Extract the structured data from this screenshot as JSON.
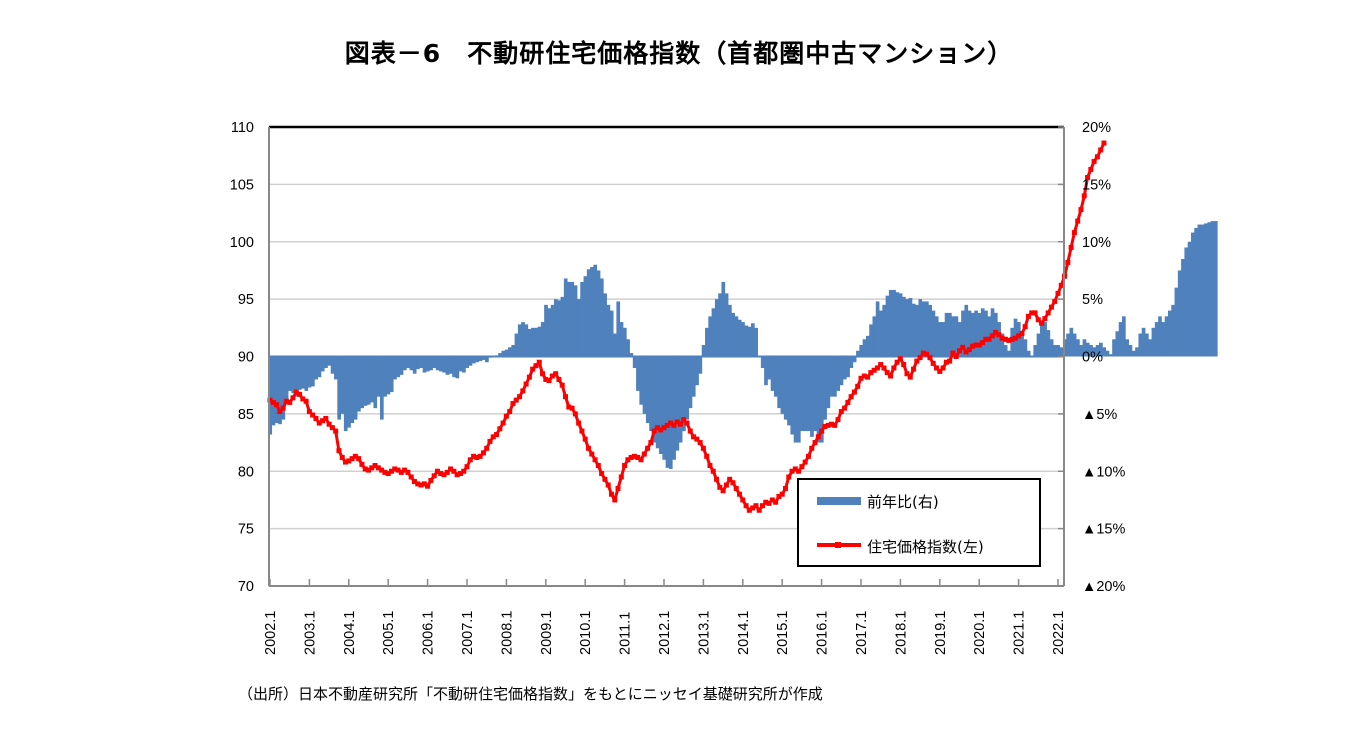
{
  "title": "図表－6　不動研住宅価格指数（首都圏中古マンション）",
  "source": "（出所）日本不動産研究所「不動研住宅価格指数」をもとにニッセイ基礎研究所が作成",
  "chart_data": {
    "type": "bar+line",
    "title": "図表－6　不動研住宅価格指数（首都圏中古マンション）",
    "xlabel": "",
    "ylabel_left": "",
    "ylabel_right": "",
    "x_start": "2002.1",
    "x_end": "2022.1",
    "frequency": "monthly",
    "x_tick_labels": [
      "2002.1",
      "2003.1",
      "2004.1",
      "2005.1",
      "2006.1",
      "2007.1",
      "2008.1",
      "2009.1",
      "2010.1",
      "2011.1",
      "2012.1",
      "2013.1",
      "2014.1",
      "2015.1",
      "2016.1",
      "2017.1",
      "2018.1",
      "2019.1",
      "2020.1",
      "2021.1",
      "2022.1"
    ],
    "y_left": {
      "range": [
        70,
        110
      ],
      "ticks": [
        "70",
        "75",
        "80",
        "85",
        "90",
        "95",
        "100",
        "105",
        "110"
      ]
    },
    "y_right": {
      "range": [
        -20,
        20
      ],
      "ticks": [
        "▲20%",
        "▲15%",
        "▲10%",
        "▲5%",
        "0%",
        "5%",
        "10%",
        "15%",
        "20%"
      ]
    },
    "grid": true,
    "legend": {
      "position": "bottom-right",
      "entries": [
        {
          "name": "前年比(右)",
          "type": "bar",
          "color": "#4f81bd"
        },
        {
          "name": "住宅価格指数(左)",
          "type": "line",
          "color": "#ff0000"
        }
      ]
    },
    "series": [
      {
        "name": "前年比(右)",
        "axis": "right",
        "unit": "%",
        "color": "#4f81bd",
        "values": [
          -6.8,
          -6.0,
          -5.8,
          -5.9,
          -5.5,
          -4.0,
          -3.0,
          -3.2,
          -3.5,
          -2.9,
          -2.8,
          -3.0,
          -2.7,
          -2.6,
          -2.0,
          -1.8,
          -1.3,
          -1.0,
          -0.8,
          -1.5,
          -2.0,
          -5.5,
          -5.0,
          -6.5,
          -6.2,
          -5.8,
          -5.5,
          -4.8,
          -4.5,
          -4.3,
          -4.2,
          -4.0,
          -4.5,
          -3.5,
          -5.5,
          -3.5,
          -3.3,
          -3.1,
          -2.0,
          -1.8,
          -1.6,
          -1.2,
          -1.0,
          -1.2,
          -1.5,
          -1.1,
          -1.0,
          -1.4,
          -1.3,
          -1.2,
          -1.0,
          -1.2,
          -1.3,
          -1.4,
          -1.6,
          -1.5,
          -1.8,
          -1.9,
          -1.3,
          -1.4,
          -1.0,
          -0.8,
          -0.6,
          -0.5,
          -0.4,
          -0.3,
          -0.5,
          -0.1,
          0.0,
          0.1,
          0.3,
          0.5,
          0.6,
          0.8,
          1.0,
          2.0,
          2.8,
          3.0,
          2.8,
          2.4,
          2.5,
          2.5,
          2.6,
          3.0,
          4.5,
          4.2,
          4.5,
          5.0,
          4.9,
          5.2,
          6.8,
          6.5,
          6.5,
          6.2,
          5.0,
          6.5,
          7.0,
          7.6,
          7.8,
          8.0,
          7.5,
          6.8,
          5.5,
          4.5,
          4.0,
          2.0,
          4.8,
          3.0,
          2.5,
          1.5,
          0.3,
          -1.0,
          -3.0,
          -4.2,
          -5.0,
          -5.8,
          -6.5,
          -7.5,
          -8.0,
          -8.5,
          -9.0,
          -9.7,
          -9.8,
          -9.0,
          -8.2,
          -7.5,
          -6.5,
          -5.5,
          -4.5,
          -3.5,
          -2.5,
          -1.5,
          1.0,
          2.5,
          3.5,
          4.2,
          5.0,
          5.5,
          6.5,
          5.5,
          4.5,
          3.8,
          3.5,
          3.2,
          3.0,
          2.7,
          2.6,
          2.9,
          2.5,
          0.0,
          -1.0,
          -2.5,
          -2.0,
          -3.0,
          -3.5,
          -4.5,
          -5.0,
          -5.5,
          -6.0,
          -6.8,
          -7.5,
          -7.5,
          -6.5,
          -6.5,
          -6.5,
          -7.0,
          -6.5,
          -7.5,
          -7.5,
          -5.5,
          -4.5,
          -3.5,
          -3.5,
          -3.0,
          -2.5,
          -2.0,
          -1.8,
          -1.0,
          -0.5,
          0.5,
          1.0,
          1.5,
          1.8,
          2.8,
          3.5,
          4.8,
          4.0,
          4.5,
          5.3,
          5.8,
          5.8,
          5.6,
          5.5,
          5.2,
          5.0,
          5.1,
          4.6,
          4.5,
          5.0,
          4.8,
          4.8,
          4.5,
          4.0,
          3.5,
          3.0,
          3.0,
          3.8,
          3.8,
          3.5,
          3.5,
          3.0,
          4.0,
          4.5,
          4.0,
          3.8,
          4.0,
          3.8,
          4.2,
          4.0,
          3.5,
          4.2,
          3.8,
          3.0,
          2.0,
          1.0,
          0.5,
          2.5,
          3.3,
          3.0,
          2.2,
          1.5,
          0.5,
          0.0,
          1.0,
          2.0,
          3.0,
          3.0,
          2.3,
          1.5,
          1.0,
          1.0,
          0.8,
          1.5,
          2.0,
          2.5,
          2.0,
          1.5,
          1.0,
          1.5,
          1.2,
          1.0,
          0.8,
          1.0,
          1.2,
          0.8,
          0.5,
          0.2,
          1.5,
          2.2,
          3.0,
          3.5,
          1.5,
          1.0,
          0.5,
          0.8,
          2.0,
          2.5,
          2.0,
          1.5,
          2.5,
          3.0,
          3.5,
          3.0,
          3.5,
          4.0,
          4.5,
          6.0,
          7.5,
          8.5,
          9.5,
          10.0,
          10.8,
          11.2,
          11.5,
          11.5,
          11.6,
          11.7,
          11.8,
          11.8
        ]
      },
      {
        "name": "住宅価格指数(左)",
        "axis": "left",
        "unit": "index",
        "color": "#ff0000",
        "values": [
          86.2,
          86.0,
          85.8,
          85.2,
          85.5,
          86.1,
          86.0,
          86.4,
          86.9,
          86.7,
          86.3,
          86.1,
          85.2,
          84.9,
          84.6,
          84.2,
          84.4,
          84.6,
          84.1,
          83.8,
          83.5,
          81.8,
          81.2,
          80.8,
          80.9,
          81.1,
          81.3,
          81.1,
          80.6,
          80.2,
          80.1,
          80.3,
          80.5,
          80.3,
          80.1,
          79.9,
          79.8,
          80.0,
          80.2,
          80.1,
          79.9,
          80.1,
          79.9,
          79.5,
          79.1,
          78.9,
          78.8,
          78.9,
          78.7,
          79.2,
          79.6,
          80.0,
          79.8,
          79.7,
          79.9,
          80.2,
          80.0,
          79.7,
          79.8,
          80.0,
          80.4,
          81.0,
          81.3,
          81.2,
          81.3,
          81.6,
          82.0,
          82.6,
          83.0,
          83.2,
          83.7,
          84.2,
          84.8,
          85.2,
          85.9,
          86.2,
          86.5,
          87.0,
          87.6,
          88.2,
          88.9,
          89.2,
          89.5,
          88.5,
          88.0,
          87.9,
          88.3,
          88.5,
          88.0,
          87.5,
          86.5,
          85.6,
          85.5,
          85.0,
          84.2,
          83.5,
          82.8,
          82.0,
          81.5,
          81.0,
          80.5,
          79.8,
          79.3,
          78.8,
          78.0,
          77.5,
          78.5,
          79.5,
          80.5,
          81.0,
          81.2,
          81.3,
          81.2,
          81.0,
          81.5,
          82.0,
          82.5,
          83.5,
          83.8,
          83.6,
          83.8,
          84.0,
          84.2,
          84.0,
          84.3,
          84.1,
          84.5,
          84.2,
          83.5,
          83.0,
          82.8,
          82.5,
          82.0,
          81.3,
          80.5,
          80.0,
          79.3,
          78.6,
          78.3,
          78.8,
          79.3,
          79.0,
          78.5,
          78.0,
          77.5,
          77.0,
          76.6,
          76.8,
          77.0,
          76.6,
          77.0,
          77.3,
          77.2,
          77.5,
          77.3,
          77.8,
          78.0,
          78.5,
          79.5,
          80.0,
          80.2,
          80.0,
          80.4,
          80.8,
          81.3,
          82.0,
          82.5,
          83.0,
          83.5,
          83.9,
          84.0,
          84.1,
          84.0,
          84.5,
          85.2,
          85.5,
          86.0,
          86.5,
          86.9,
          87.4,
          88.1,
          88.3,
          88.2,
          88.6,
          88.8,
          89.0,
          89.3,
          89.0,
          88.6,
          88.3,
          89.0,
          89.5,
          89.8,
          89.3,
          88.5,
          88.2,
          88.9,
          89.6,
          89.9,
          90.3,
          90.2,
          89.9,
          89.4,
          89.0,
          88.7,
          89.0,
          89.5,
          89.6,
          90.3,
          90.0,
          90.5,
          90.8,
          90.4,
          90.6,
          90.9,
          91.0,
          91.0,
          91.2,
          91.5,
          91.5,
          91.8,
          92.1,
          91.9,
          91.6,
          91.5,
          91.4,
          91.5,
          91.6,
          91.8,
          92.0,
          92.6,
          93.5,
          93.8,
          93.8,
          93.2,
          92.9,
          93.3,
          93.8,
          94.3,
          94.8,
          95.5,
          96.2,
          97.0,
          98.2,
          99.5,
          100.8,
          101.8,
          102.8,
          104.0,
          105.6,
          106.3,
          107.0,
          107.4,
          108.0,
          108.6
        ]
      }
    ]
  }
}
